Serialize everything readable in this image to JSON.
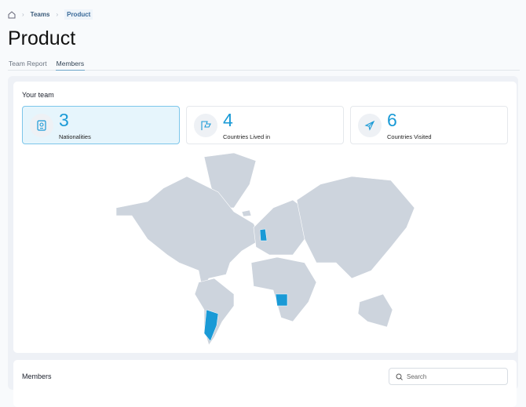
{
  "breadcrumb": {
    "home_icon": "home-icon",
    "items": [
      "Teams",
      "Product"
    ]
  },
  "page_title": "Product",
  "tabs": [
    {
      "label": "Team Report",
      "active": false
    },
    {
      "label": "Members",
      "active": true
    }
  ],
  "team": {
    "title": "Your team",
    "stats": [
      {
        "value": "3",
        "label": "Nationalities",
        "icon": "passport-icon",
        "selected": true
      },
      {
        "value": "4",
        "label": "Countries Lived in",
        "icon": "flag-icon",
        "selected": false
      },
      {
        "value": "6",
        "label": "Countries Visited",
        "icon": "plane-icon",
        "selected": false
      }
    ],
    "map": {
      "highlighted": [
        "United Kingdom",
        "Angola",
        "Argentina"
      ],
      "base_color": "#cdd4dd",
      "highlight_color": "#1a9ad6"
    }
  },
  "members": {
    "title": "Members",
    "search_placeholder": "Search"
  },
  "colors": {
    "accent": "#1a9ad6"
  }
}
